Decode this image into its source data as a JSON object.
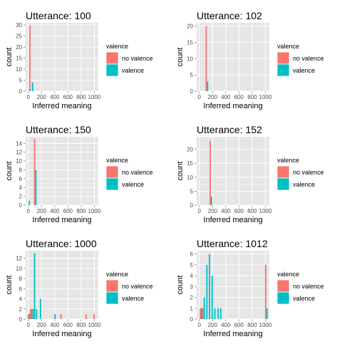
{
  "colors": {
    "no_valence": "#F8766D",
    "valence": "#00BFC4",
    "panel_bg": "#E5E5E5",
    "grid": "#FFFFFF"
  },
  "chart_data": [
    {
      "type": "bar",
      "title": "Utterance: 100",
      "xlabel": "Inferred meaning",
      "ylabel": "count",
      "xlim": [
        -40,
        1060
      ],
      "ylim": [
        0,
        31
      ],
      "x_ticks": [
        "0",
        "200",
        "400",
        "600",
        "800",
        "1000"
      ],
      "y_ticks": [
        "0",
        "5",
        "10",
        "15",
        "20",
        "25",
        "30"
      ],
      "legend": {
        "title": "valence",
        "entries": [
          "no valence",
          "valence"
        ],
        "placement": "right"
      },
      "series": [
        {
          "name": "no valence",
          "bins": [
            [
              25,
              30
            ]
          ]
        },
        {
          "name": "valence",
          "bins": [
            [
              25,
              1
            ],
            [
              65,
              4
            ]
          ]
        }
      ]
    },
    {
      "type": "bar",
      "title": "Utterance: 102",
      "xlabel": "Inferred meaning",
      "ylabel": "count",
      "xlim": [
        -40,
        1060
      ],
      "ylim": [
        0,
        21
      ],
      "x_ticks": [
        "0",
        "200",
        "400",
        "600",
        "800",
        "1000"
      ],
      "y_ticks": [
        "0",
        "5",
        "10",
        "15",
        "20"
      ],
      "legend": {
        "title": "valence",
        "entries": [
          "no valence",
          "valence"
        ],
        "placement": "right"
      },
      "series": [
        {
          "name": "no valence",
          "bins": [
            [
              105,
              20
            ]
          ]
        },
        {
          "name": "valence",
          "bins": [
            [
              125,
              3
            ]
          ]
        }
      ]
    },
    {
      "type": "bar",
      "title": "Utterance: 150",
      "xlabel": "Inferred meaning",
      "ylabel": "count",
      "xlim": [
        -40,
        1060
      ],
      "ylim": [
        0,
        15.5
      ],
      "x_ticks": [
        "0",
        "200",
        "400",
        "600",
        "800",
        "1000"
      ],
      "y_ticks": [
        "0",
        "2",
        "4",
        "6",
        "8",
        "10",
        "12",
        "14"
      ],
      "legend": {
        "title": "valence",
        "entries": [
          "no valence",
          "valence"
        ],
        "placement": "right"
      },
      "series": [
        {
          "name": "no valence",
          "bins": [
            [
              95,
              15
            ]
          ]
        },
        {
          "name": "valence",
          "bins": [
            [
              15,
              1
            ],
            [
              115,
              8
            ]
          ]
        }
      ]
    },
    {
      "type": "bar",
      "title": "Utterance: 152",
      "xlabel": "Inferred meaning",
      "ylabel": "count",
      "xlim": [
        -40,
        1060
      ],
      "ylim": [
        0,
        24.5
      ],
      "x_ticks": [
        "0",
        "200",
        "400",
        "600",
        "800",
        "1000"
      ],
      "y_ticks": [
        "0",
        "5",
        "10",
        "15",
        "20"
      ],
      "legend": {
        "title": "valence",
        "entries": [
          "no valence",
          "valence"
        ],
        "placement": "right"
      },
      "series": [
        {
          "name": "no valence",
          "bins": [
            [
              165,
              23
            ]
          ]
        },
        {
          "name": "valence",
          "bins": [
            [
              185,
              3
            ]
          ]
        }
      ]
    },
    {
      "type": "bar",
      "title": "Utterance: 1000",
      "xlabel": "Inferred meaning",
      "ylabel": "count",
      "xlim": [
        -40,
        1060
      ],
      "ylim": [
        0,
        13.5
      ],
      "x_ticks": [
        "0",
        "200",
        "400",
        "600",
        "800",
        "1000"
      ],
      "y_ticks": [
        "0",
        "2",
        "4",
        "6",
        "8",
        "10",
        "12"
      ],
      "legend": {
        "title": "valence",
        "entries": [
          "no valence",
          "valence"
        ],
        "placement": "right"
      },
      "series": [
        {
          "name": "no valence",
          "bins": [
            [
              5,
              1
            ],
            [
              35,
              2
            ],
            [
              75,
              2
            ],
            [
              495,
              1
            ],
            [
              875,
              1
            ],
            [
              995,
              1
            ]
          ]
        },
        {
          "name": "valence",
          "bins": [
            [
              15,
              1
            ],
            [
              55,
              2
            ],
            [
              95,
              13
            ],
            [
              125,
              2
            ],
            [
              185,
              4
            ],
            [
              405,
              1
            ]
          ]
        }
      ]
    },
    {
      "type": "bar",
      "title": "Utterance: 1012",
      "xlabel": "Inferred meaning",
      "ylabel": "count",
      "xlim": [
        -40,
        1060
      ],
      "ylim": [
        0,
        6.3
      ],
      "x_ticks": [
        "0",
        "200",
        "400",
        "600",
        "800",
        "1000"
      ],
      "y_ticks": [
        "0",
        "1",
        "2",
        "3",
        "4",
        "5",
        "6"
      ],
      "legend": {
        "title": "valence",
        "entries": [
          "no valence",
          "valence"
        ],
        "placement": "right"
      },
      "series": [
        {
          "name": "no valence",
          "bins": [
            [
              15,
              1
            ],
            [
              55,
              1
            ],
            [
              1005,
              5
            ]
          ]
        },
        {
          "name": "valence",
          "bins": [
            [
              35,
              1
            ],
            [
              75,
              2
            ],
            [
              115,
              5
            ],
            [
              155,
              6
            ],
            [
              195,
              4
            ],
            [
              235,
              1
            ],
            [
              285,
              1
            ],
            [
              325,
              1
            ],
            [
              1025,
              1
            ]
          ]
        }
      ]
    }
  ]
}
